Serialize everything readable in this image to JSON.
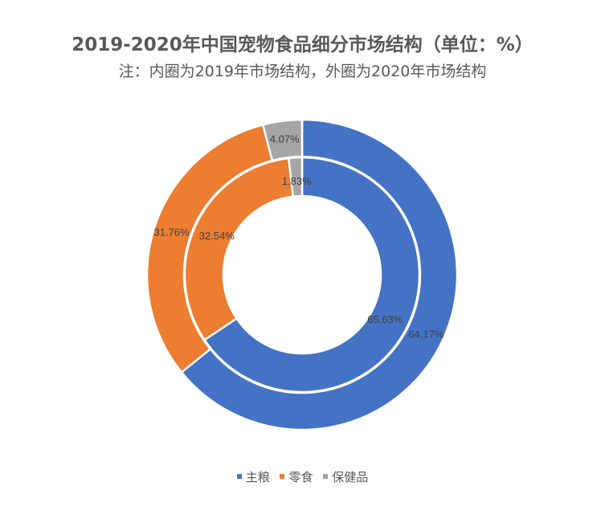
{
  "chart_data": {
    "type": "pie",
    "title": "2019-2020年中国宠物食品细分市场结构（单位：%）",
    "subtitle": "注：内圈为2019年市场结构，外圈为2020年市场结构",
    "categories": [
      "主粮",
      "零食",
      "保健品"
    ],
    "colors": [
      "#4472C4",
      "#ED7D31",
      "#A5A5A5"
    ],
    "series": [
      {
        "name": "2019",
        "ring": "inner",
        "values": [
          65.63,
          32.54,
          1.83
        ],
        "labels": [
          "65.63%",
          "32.54%",
          "1.83%"
        ]
      },
      {
        "name": "2020",
        "ring": "outer",
        "values": [
          64.17,
          31.76,
          4.07
        ],
        "labels": [
          "64.17%",
          "31.76%",
          "4.07%"
        ]
      }
    ],
    "legend_position": "bottom"
  }
}
